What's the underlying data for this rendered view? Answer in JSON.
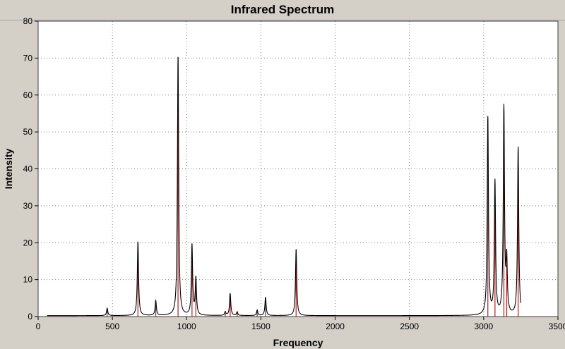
{
  "window": {
    "title": "Infrared Spectrum"
  },
  "chart_data": {
    "type": "line",
    "title": "Infrared Spectrum",
    "xlabel": "Frequency",
    "ylabel": "Intensity",
    "xlim": [
      0,
      3500
    ],
    "ylim": [
      0,
      80
    ],
    "x_ticks": [
      0,
      500,
      1000,
      1500,
      2000,
      2500,
      3000,
      3500
    ],
    "y_ticks": [
      0,
      10,
      20,
      30,
      40,
      50,
      60,
      70,
      80
    ],
    "grid": true,
    "colors": {
      "spectrum": "#000000",
      "sticks": "#b03030",
      "plot_bg": "#ffffff",
      "grid": "#808080",
      "frame": "#d4d0c8"
    },
    "spectrum_range": [
      60,
      3250
    ],
    "sticks": [
      {
        "x": 465,
        "y": 2
      },
      {
        "x": 672,
        "y": 20
      },
      {
        "x": 792,
        "y": 4
      },
      {
        "x": 942,
        "y": 70
      },
      {
        "x": 1036,
        "y": 19
      },
      {
        "x": 1062,
        "y": 10
      },
      {
        "x": 1260,
        "y": 1
      },
      {
        "x": 1293,
        "y": 6
      },
      {
        "x": 1340,
        "y": 1
      },
      {
        "x": 1475,
        "y": 1.5
      },
      {
        "x": 1531,
        "y": 5
      },
      {
        "x": 1737,
        "y": 18
      },
      {
        "x": 3028,
        "y": 53.5
      },
      {
        "x": 3076,
        "y": 36
      },
      {
        "x": 3136,
        "y": 56
      },
      {
        "x": 3155,
        "y": 14
      },
      {
        "x": 3232,
        "y": 45.5
      }
    ]
  }
}
